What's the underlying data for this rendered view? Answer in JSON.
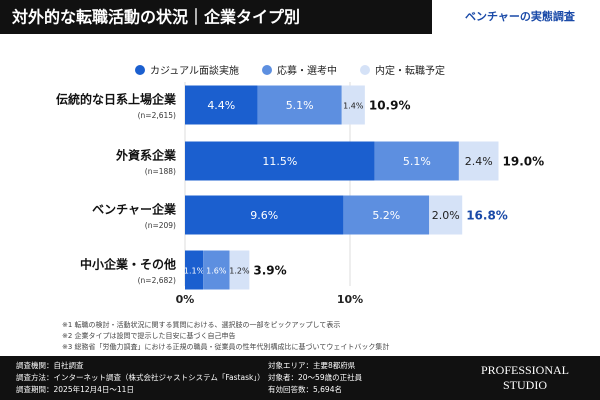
{
  "header": {
    "title": "対外的な転職活動の状況｜企業タイプ別",
    "badge": "ベンチャーの実態調査"
  },
  "chart_data": {
    "type": "stacked-bar-horizontal",
    "categories": [
      "伝統的な日系上場企業",
      "外資系企業",
      "ベンチャー企業",
      "中小企業・その他"
    ],
    "sample_sizes": [
      "(n=2,615)",
      "(n=188)",
      "(n=209)",
      "(n=2,682)"
    ],
    "series": [
      {
        "name": "カジュアル面談実施",
        "color": "#1b5fcf",
        "label_color": "#ffffff",
        "values": [
          4.4,
          11.5,
          9.6,
          1.1
        ],
        "value_labels": [
          "4.4%",
          "11.5%",
          "9.6%",
          "1.1%"
        ]
      },
      {
        "name": "応募・選考中",
        "color": "#5d8fe0",
        "label_color": "#ffffff",
        "values": [
          5.1,
          5.1,
          5.2,
          1.6
        ],
        "value_labels": [
          "5.1%",
          "5.1%",
          "5.2%",
          "1.6%"
        ]
      },
      {
        "name": "内定・転職予定",
        "color": "#d5e2f7",
        "label_color": "#222222",
        "values": [
          1.4,
          2.4,
          2.0,
          1.2
        ],
        "value_labels": [
          "1.4%",
          "2.4%",
          "2.0%",
          "1.2%"
        ]
      }
    ],
    "totals": {
      "values": [
        10.9,
        19.0,
        16.8,
        3.9
      ],
      "value_labels": [
        "10.9%",
        "19.0%",
        "16.8%",
        "3.9%"
      ],
      "colors": [
        "#111111",
        "#111111",
        "#1a4aa8",
        "#111111"
      ]
    },
    "xlim": [
      0,
      25
    ],
    "xticks": [
      {
        "value": 0,
        "label": "0%"
      },
      {
        "value": 10,
        "label": "10%"
      }
    ],
    "grid": true
  },
  "footnotes": [
    "※1 転職の検討・活動状況に関する質問における、選択肢の一部をピックアップして表示",
    "※2 企業タイプは設問で提示した目安に基づく自己申告",
    "※3 総務省「労働力調査」における正規の職員・従業員の性年代別構成比に基づいてウェイトバック集計"
  ],
  "footer": {
    "left": [
      "調査機関：自社調査",
      "調査方法：インターネット調査（株式会社ジャストシステム「Fastask」）",
      "調査期間：2025年12月4日〜11日"
    ],
    "right": [
      "対象エリア：主要8都府県",
      "対象者：20〜59歳の正社員",
      "有効回答数：5,694名"
    ],
    "logo": [
      "PROFESSIONAL",
      "STUDIO"
    ]
  }
}
